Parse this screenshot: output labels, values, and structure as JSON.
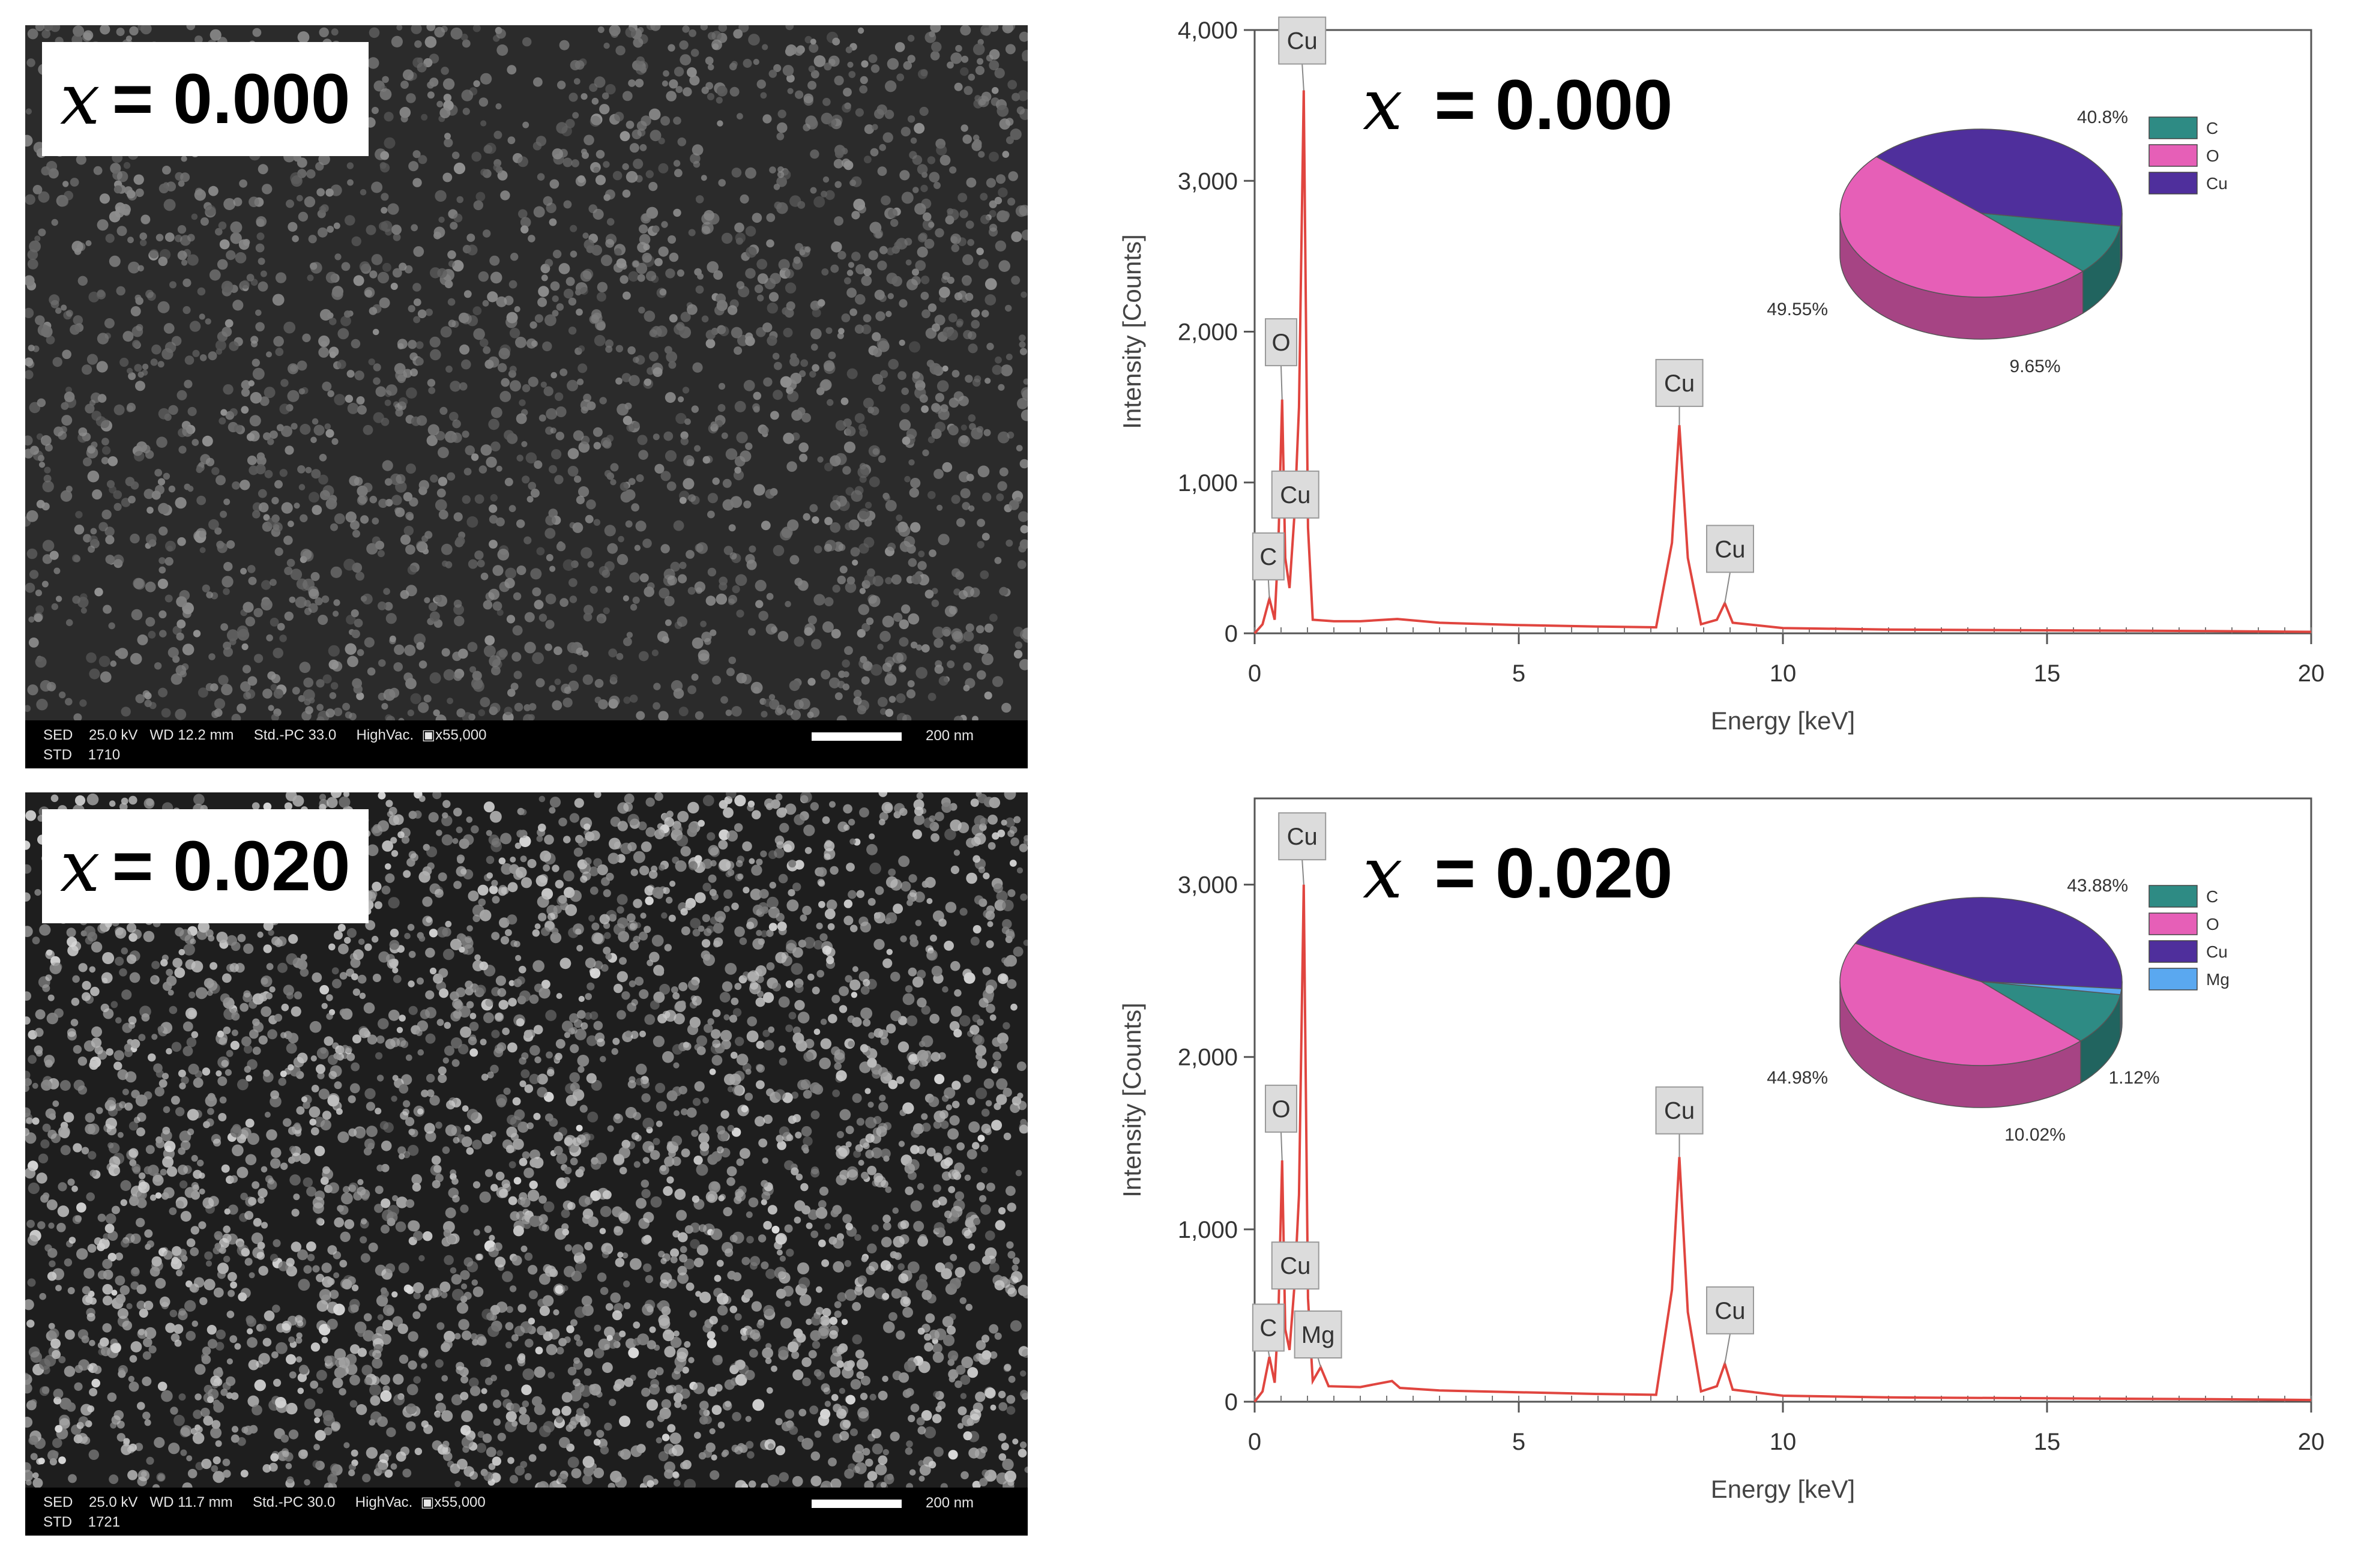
{
  "panels": [
    {
      "label_var": "x",
      "label_value": "= 0.000",
      "sem": {
        "row1": "SED    25.0 kV   WD 12.2 mm     Std.-PC 33.0     HighVac.  ▣x55,000",
        "row2": "STD    1710",
        "scale_text": "200 nm",
        "brightness": 0.55
      }
    },
    {
      "label_var": "x",
      "label_value": "= 0.020",
      "sem": {
        "row1": "SED    25.0 kV   WD 11.7 mm     Std.-PC 30.0     HighVac.  ▣x55,000",
        "row2": "STD    1721",
        "scale_text": "200 nm",
        "brightness": 1.0
      }
    }
  ],
  "chart_data": [
    {
      "type": "line",
      "title_var": "x",
      "title_value": "= 0.000",
      "xlabel": "Energy [keV]",
      "ylabel": "Intensity [Counts]",
      "xlim": [
        0,
        20
      ],
      "ylim": [
        0,
        4000
      ],
      "xticks": [
        0,
        5,
        10,
        15,
        20
      ],
      "yticks": [
        0,
        1000,
        2000,
        3000,
        4000
      ],
      "ytick_labels": [
        "0",
        "1,000",
        "2,000",
        "3,000",
        "4,000"
      ],
      "line_color": "#e0453f",
      "spectrum": [
        {
          "x": 0.0,
          "y": 0
        },
        {
          "x": 0.15,
          "y": 60
        },
        {
          "x": 0.28,
          "y": 230
        },
        {
          "x": 0.38,
          "y": 90
        },
        {
          "x": 0.45,
          "y": 600
        },
        {
          "x": 0.52,
          "y": 1550
        },
        {
          "x": 0.58,
          "y": 500
        },
        {
          "x": 0.66,
          "y": 300
        },
        {
          "x": 0.76,
          "y": 820
        },
        {
          "x": 0.84,
          "y": 1500
        },
        {
          "x": 0.93,
          "y": 3600
        },
        {
          "x": 1.01,
          "y": 700
        },
        {
          "x": 1.1,
          "y": 90
        },
        {
          "x": 1.5,
          "y": 80
        },
        {
          "x": 2.0,
          "y": 80
        },
        {
          "x": 2.7,
          "y": 95
        },
        {
          "x": 3.5,
          "y": 70
        },
        {
          "x": 5.0,
          "y": 55
        },
        {
          "x": 6.5,
          "y": 45
        },
        {
          "x": 7.6,
          "y": 40
        },
        {
          "x": 7.9,
          "y": 600
        },
        {
          "x": 8.04,
          "y": 1380
        },
        {
          "x": 8.2,
          "y": 500
        },
        {
          "x": 8.45,
          "y": 60
        },
        {
          "x": 8.75,
          "y": 90
        },
        {
          "x": 8.9,
          "y": 200
        },
        {
          "x": 9.05,
          "y": 70
        },
        {
          "x": 10.0,
          "y": 35
        },
        {
          "x": 12.0,
          "y": 25
        },
        {
          "x": 15.0,
          "y": 20
        },
        {
          "x": 18.0,
          "y": 15
        },
        {
          "x": 20.0,
          "y": 10
        }
      ],
      "peaks": [
        {
          "label": "Cu",
          "x": 0.93,
          "y": 3600,
          "lx": 0.9,
          "ly": 3930
        },
        {
          "label": "O",
          "x": 0.52,
          "y": 1550,
          "lx": 0.5,
          "ly": 1930
        },
        {
          "label": "Cu",
          "x": 0.84,
          "y": 900,
          "lx": 0.77,
          "ly": 920
        },
        {
          "label": "C",
          "x": 0.28,
          "y": 230,
          "lx": 0.26,
          "ly": 510
        },
        {
          "label": "Cu",
          "x": 8.04,
          "y": 1380,
          "lx": 8.04,
          "ly": 1660
        },
        {
          "label": "Cu",
          "x": 8.9,
          "y": 200,
          "lx": 9.0,
          "ly": 560
        }
      ],
      "pie": {
        "slices": [
          {
            "name": "C",
            "value": 9.65,
            "label": "9.65%",
            "color": "#2e8b84"
          },
          {
            "name": "O",
            "value": 49.55,
            "label": "49.55%",
            "color": "#e65fb7"
          },
          {
            "name": "Cu",
            "value": 40.8,
            "label": "40.8%",
            "color": "#4f2f9c"
          }
        ]
      }
    },
    {
      "type": "line",
      "title_var": "x",
      "title_value": "= 0.020",
      "xlabel": "Energy [keV]",
      "ylabel": "Intensity [Counts]",
      "xlim": [
        0,
        20
      ],
      "ylim": [
        0,
        3500
      ],
      "xticks": [
        0,
        5,
        10,
        15,
        20
      ],
      "yticks": [
        0,
        1000,
        2000,
        3000
      ],
      "ytick_labels": [
        "0",
        "1,000",
        "2,000",
        "3,000"
      ],
      "line_color": "#e0453f",
      "spectrum": [
        {
          "x": 0.0,
          "y": 0
        },
        {
          "x": 0.15,
          "y": 60
        },
        {
          "x": 0.28,
          "y": 260
        },
        {
          "x": 0.38,
          "y": 110
        },
        {
          "x": 0.45,
          "y": 500
        },
        {
          "x": 0.52,
          "y": 1400
        },
        {
          "x": 0.58,
          "y": 420
        },
        {
          "x": 0.66,
          "y": 300
        },
        {
          "x": 0.76,
          "y": 700
        },
        {
          "x": 0.84,
          "y": 1200
        },
        {
          "x": 0.93,
          "y": 3000
        },
        {
          "x": 1.01,
          "y": 600
        },
        {
          "x": 1.1,
          "y": 120
        },
        {
          "x": 1.25,
          "y": 200
        },
        {
          "x": 1.4,
          "y": 90
        },
        {
          "x": 2.0,
          "y": 85
        },
        {
          "x": 2.6,
          "y": 120
        },
        {
          "x": 2.75,
          "y": 80
        },
        {
          "x": 3.5,
          "y": 65
        },
        {
          "x": 5.0,
          "y": 55
        },
        {
          "x": 6.5,
          "y": 45
        },
        {
          "x": 7.6,
          "y": 40
        },
        {
          "x": 7.9,
          "y": 650
        },
        {
          "x": 8.04,
          "y": 1420
        },
        {
          "x": 8.2,
          "y": 520
        },
        {
          "x": 8.45,
          "y": 60
        },
        {
          "x": 8.75,
          "y": 90
        },
        {
          "x": 8.9,
          "y": 220
        },
        {
          "x": 9.05,
          "y": 70
        },
        {
          "x": 10.0,
          "y": 35
        },
        {
          "x": 12.0,
          "y": 25
        },
        {
          "x": 15.0,
          "y": 20
        },
        {
          "x": 18.0,
          "y": 15
        },
        {
          "x": 20.0,
          "y": 10
        }
      ],
      "peaks": [
        {
          "label": "Cu",
          "x": 0.93,
          "y": 3000,
          "lx": 0.9,
          "ly": 3280
        },
        {
          "label": "O",
          "x": 0.52,
          "y": 1400,
          "lx": 0.5,
          "ly": 1700
        },
        {
          "label": "Cu",
          "x": 0.84,
          "y": 800,
          "lx": 0.77,
          "ly": 790
        },
        {
          "label": "C",
          "x": 0.28,
          "y": 260,
          "lx": 0.26,
          "ly": 430
        },
        {
          "label": "Mg",
          "x": 1.25,
          "y": 200,
          "lx": 1.2,
          "ly": 390
        },
        {
          "label": "Cu",
          "x": 8.04,
          "y": 1420,
          "lx": 8.04,
          "ly": 1690
        },
        {
          "label": "Cu",
          "x": 8.9,
          "y": 220,
          "lx": 9.0,
          "ly": 530
        }
      ],
      "pie": {
        "slices": [
          {
            "name": "C",
            "value": 10.02,
            "label": "10.02%",
            "color": "#2e8b84"
          },
          {
            "name": "O",
            "value": 44.98,
            "label": "44.98%",
            "color": "#e65fb7"
          },
          {
            "name": "Cu",
            "value": 43.88,
            "label": "43.88%",
            "color": "#4f2f9c"
          },
          {
            "name": "Mg",
            "value": 1.12,
            "label": "1.12%",
            "color": "#5aa8f0"
          }
        ]
      }
    }
  ]
}
